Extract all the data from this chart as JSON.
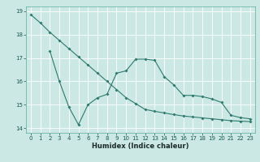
{
  "xlabel": "Humidex (Indice chaleur)",
  "bg_color": "#cce8e4",
  "grid_color": "#ffffff",
  "line_color": "#2d7a6e",
  "xlim": [
    -0.5,
    23.5
  ],
  "ylim": [
    13.8,
    19.2
  ],
  "yticks": [
    14,
    15,
    16,
    17,
    18,
    19
  ],
  "xticks": [
    0,
    1,
    2,
    3,
    4,
    5,
    6,
    7,
    8,
    9,
    10,
    11,
    12,
    13,
    14,
    15,
    16,
    17,
    18,
    19,
    20,
    21,
    22,
    23
  ],
  "line1_x": [
    0,
    1,
    2,
    3,
    4,
    5,
    6,
    7,
    8,
    9,
    10,
    11,
    12,
    13,
    14,
    15,
    16,
    17,
    18,
    19,
    20,
    21,
    22,
    23
  ],
  "line1_y": [
    18.85,
    18.5,
    18.1,
    17.75,
    17.4,
    17.05,
    16.7,
    16.35,
    16.0,
    15.65,
    15.3,
    15.05,
    14.8,
    14.72,
    14.65,
    14.58,
    14.52,
    14.48,
    14.44,
    14.4,
    14.36,
    14.32,
    14.3,
    14.28
  ],
  "line2_x": [
    2,
    3,
    4,
    5,
    6,
    7,
    8,
    9,
    10,
    11,
    12,
    13,
    14,
    15,
    16,
    17,
    18,
    19,
    20,
    21,
    22,
    23
  ],
  "line2_y": [
    17.3,
    16.0,
    14.9,
    14.15,
    15.0,
    15.3,
    15.45,
    16.35,
    16.45,
    16.95,
    16.95,
    16.9,
    16.2,
    15.85,
    15.4,
    15.4,
    15.35,
    15.25,
    15.1,
    14.55,
    14.45,
    14.4
  ],
  "marker": "D",
  "markersize": 2.0,
  "linewidth": 0.8,
  "spine_color": "#5aada0",
  "tick_color": "#1a5a50",
  "xlabel_color": "#1a2a28",
  "xlabel_fontsize": 6.0,
  "tick_fontsize": 5.0
}
